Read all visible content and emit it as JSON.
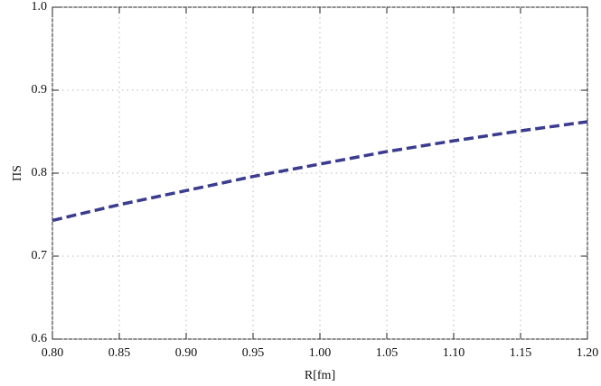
{
  "chart_data": {
    "type": "line",
    "x_label": "R[fm]",
    "y_label": "ΠS",
    "x": [
      0.8,
      0.85,
      0.9,
      0.95,
      1.0,
      1.05,
      1.1,
      1.15,
      1.2
    ],
    "series": [
      {
        "color": "#3b3b8f",
        "values": [
          0.743,
          0.762,
          0.779,
          0.796,
          0.811,
          0.826,
          0.839,
          0.851,
          0.862
        ]
      }
    ],
    "xlim": [
      0.8,
      1.2
    ],
    "xticks": [
      {
        "value": 0.8,
        "label": "0.80"
      },
      {
        "value": 0.85,
        "label": "0.85"
      },
      {
        "value": 0.9,
        "label": "0.90"
      },
      {
        "value": 0.95,
        "label": "0.95"
      },
      {
        "value": 1.0,
        "label": "1.00"
      },
      {
        "value": 1.05,
        "label": "1.05"
      },
      {
        "value": 1.1,
        "label": "1.10"
      },
      {
        "value": 1.15,
        "label": "1.15"
      },
      {
        "value": 1.2,
        "label": "1.20"
      }
    ],
    "ylim": [
      0.6,
      1.0
    ],
    "yticks": [
      0.6,
      0.7,
      0.8,
      0.9,
      {
        "value": 1.0,
        "label": "1.0"
      }
    ],
    "grid": true
  }
}
